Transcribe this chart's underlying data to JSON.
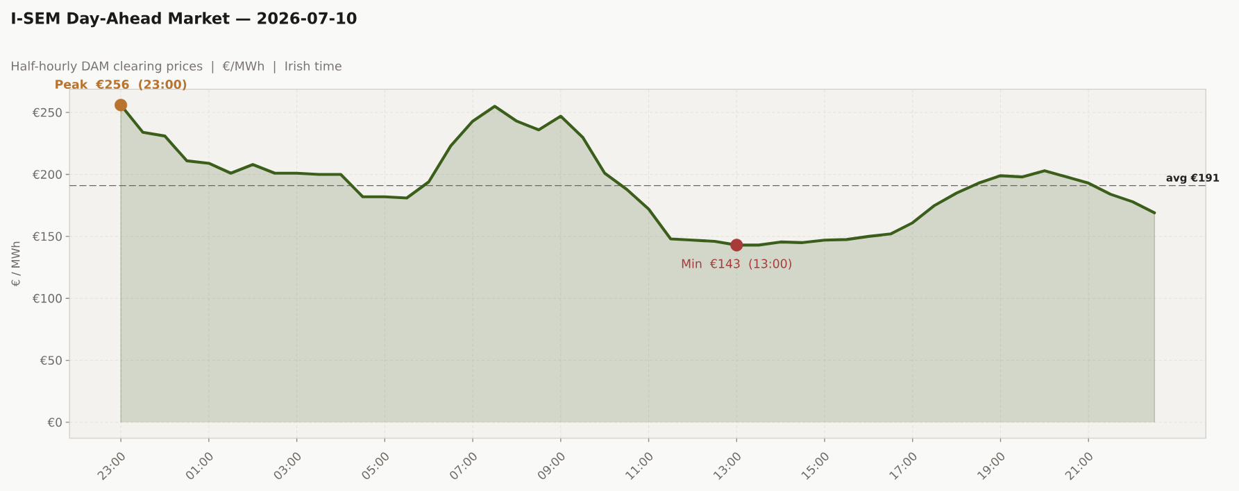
{
  "chart_data": {
    "type": "area",
    "title": "I-SEM Day-Ahead Market — 2026-07-10",
    "subtitle": "Half-hourly DAM clearing prices  |  €/MWh  |  Irish time",
    "ylabel": "€ / MWh",
    "x": [
      "2026-07-09T23:00",
      "2026-07-09T23:30",
      "2026-07-10T00:00",
      "2026-07-10T00:30",
      "2026-07-10T01:00",
      "2026-07-10T01:30",
      "2026-07-10T02:00",
      "2026-07-10T02:30",
      "2026-07-10T03:00",
      "2026-07-10T03:30",
      "2026-07-10T04:00",
      "2026-07-10T04:30",
      "2026-07-10T05:00",
      "2026-07-10T05:30",
      "2026-07-10T06:00",
      "2026-07-10T06:30",
      "2026-07-10T07:00",
      "2026-07-10T07:30",
      "2026-07-10T08:00",
      "2026-07-10T08:30",
      "2026-07-10T09:00",
      "2026-07-10T09:30",
      "2026-07-10T10:00",
      "2026-07-10T10:30",
      "2026-07-10T11:00",
      "2026-07-10T11:30",
      "2026-07-10T12:00",
      "2026-07-10T12:30",
      "2026-07-10T13:00",
      "2026-07-10T13:30",
      "2026-07-10T14:00",
      "2026-07-10T14:30",
      "2026-07-10T15:00",
      "2026-07-10T15:30",
      "2026-07-10T16:00",
      "2026-07-10T16:30",
      "2026-07-10T17:00",
      "2026-07-10T17:30",
      "2026-07-10T18:00",
      "2026-07-10T18:30",
      "2026-07-10T19:00",
      "2026-07-10T19:30",
      "2026-07-10T20:00",
      "2026-07-10T20:30",
      "2026-07-10T21:00",
      "2026-07-10T21:30",
      "2026-07-10T22:00",
      "2026-07-10T22:30"
    ],
    "series": [
      {
        "color": "#3b5e1a",
        "values": [
          256,
          234,
          231,
          211,
          209,
          201,
          208,
          201,
          201,
          200,
          200,
          182,
          182,
          181,
          194,
          223,
          243,
          255,
          243,
          236,
          247,
          230,
          201,
          188,
          172,
          148,
          147,
          146,
          143,
          143,
          145.5,
          145,
          147,
          147.5,
          150,
          152,
          161,
          175,
          185,
          193,
          199,
          198,
          203,
          198,
          193,
          184,
          178,
          169
        ]
      },
      {
        "type": "scatter",
        "marker": "circle",
        "color": "#b8732e",
        "x": [
          "2026-07-09T23:00"
        ],
        "values": [
          256
        ]
      },
      {
        "type": "scatter",
        "marker": "circle",
        "color": "#a83a3a",
        "x": [
          "2026-07-10T13:00"
        ],
        "values": [
          143
        ]
      }
    ],
    "xlim": [
      "2026-07-09T21:50",
      "2026-07-10T23:40"
    ],
    "xticks": [
      {
        "value": "2026-07-09T23:00",
        "label": "23:00"
      },
      {
        "value": "2026-07-10T01:00",
        "label": "01:00"
      },
      {
        "value": "2026-07-10T03:00",
        "label": "03:00"
      },
      {
        "value": "2026-07-10T05:00",
        "label": "05:00"
      },
      {
        "value": "2026-07-10T07:00",
        "label": "07:00"
      },
      {
        "value": "2026-07-10T09:00",
        "label": "09:00"
      },
      {
        "value": "2026-07-10T11:00",
        "label": "11:00"
      },
      {
        "value": "2026-07-10T13:00",
        "label": "13:00"
      },
      {
        "value": "2026-07-10T15:00",
        "label": "15:00"
      },
      {
        "value": "2026-07-10T17:00",
        "label": "17:00"
      },
      {
        "value": "2026-07-10T19:00",
        "label": "19:00"
      },
      {
        "value": "2026-07-10T21:00",
        "label": "21:00"
      }
    ],
    "ylim": [
      -12.8,
      268.8
    ],
    "yticks": [
      {
        "value": 0,
        "label": "€0"
      },
      {
        "value": 50,
        "label": "€50"
      },
      {
        "value": 100,
        "label": "€100"
      },
      {
        "value": 150,
        "label": "€150"
      },
      {
        "value": 200,
        "label": "€200"
      },
      {
        "value": 250,
        "label": "€250"
      }
    ],
    "grid": true,
    "ref_lines": [
      {
        "axis": "y",
        "value": 191,
        "label": "avg €191",
        "color": "#666666",
        "line_style": "dashed"
      }
    ],
    "annotations": [
      {
        "text": "Peak  €256  (23:00)",
        "x": "2026-07-09T23:00",
        "y": 256
      },
      {
        "text": "Min  €143  (13:00)",
        "x": "2026-07-10T13:00",
        "y": 143
      }
    ]
  }
}
